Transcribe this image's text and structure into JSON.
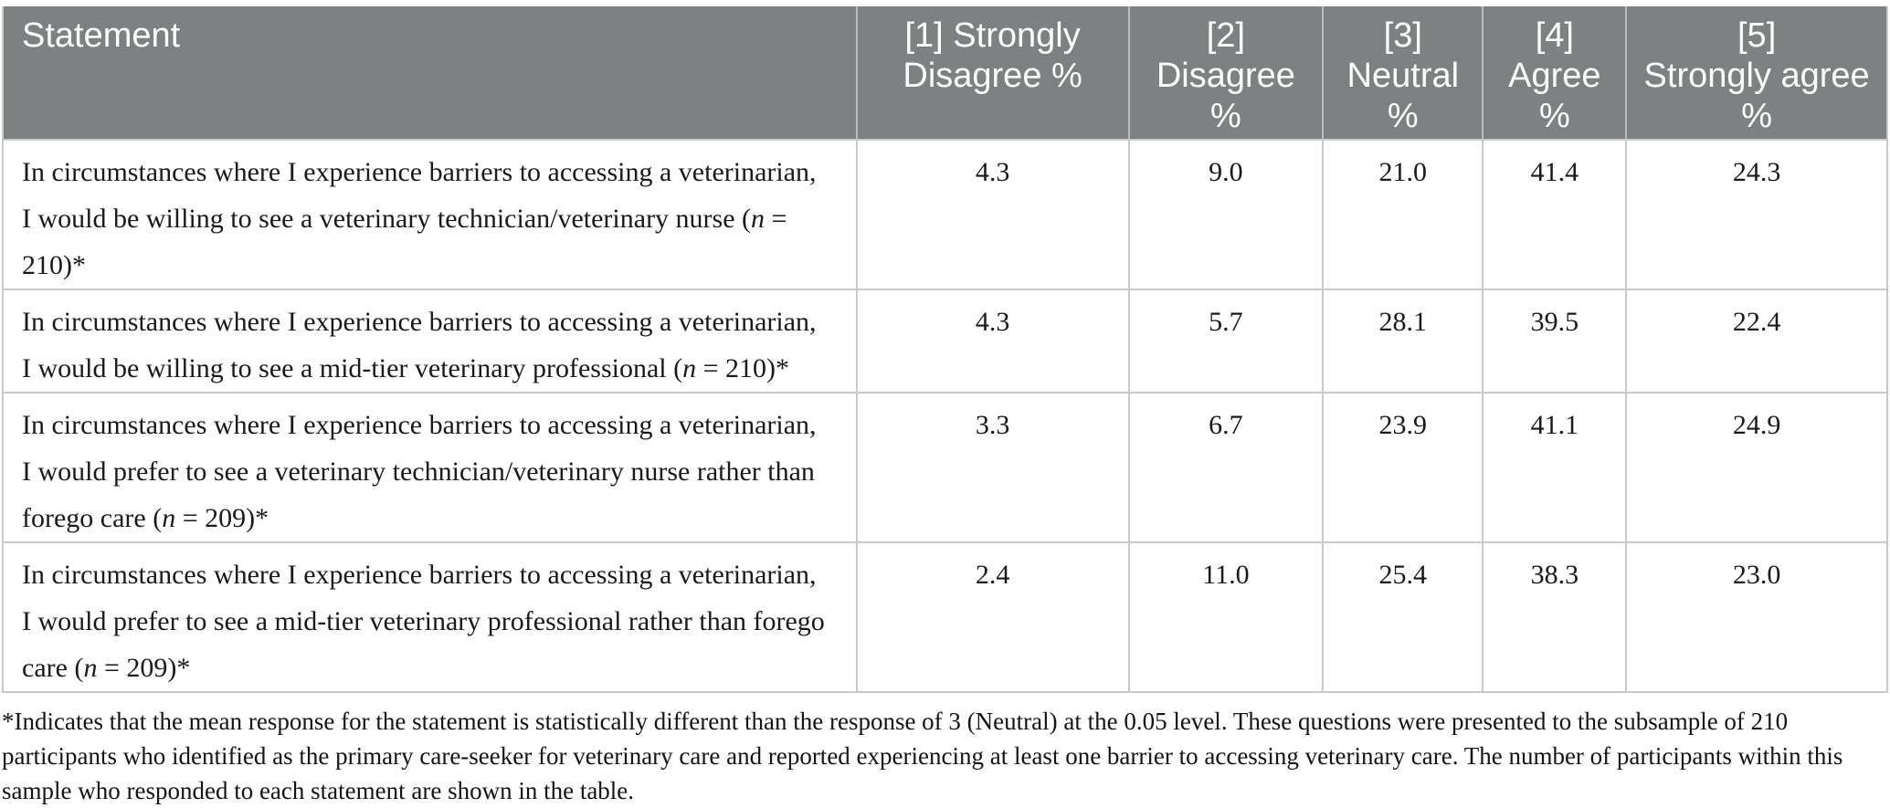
{
  "table": {
    "header": {
      "columns": [
        {
          "id": "statement",
          "align": "left",
          "lines": [
            "Statement"
          ]
        },
        {
          "id": "strongly-disagree",
          "align": "center",
          "lines": [
            "[1] Strongly",
            "Disagree %"
          ]
        },
        {
          "id": "disagree",
          "align": "center",
          "lines": [
            "[2]",
            "Disagree",
            "%"
          ]
        },
        {
          "id": "neutral",
          "align": "center",
          "lines": [
            "[3]",
            "Neutral",
            "%"
          ]
        },
        {
          "id": "agree",
          "align": "center",
          "lines": [
            "[4]",
            "Agree",
            "%"
          ]
        },
        {
          "id": "strongly-agree",
          "align": "center",
          "lines": [
            "[5]",
            "Strongly agree",
            "%"
          ]
        }
      ]
    },
    "rows": [
      {
        "statement_lines": [
          "In circumstances where I experience barriers to accessing a veterinarian,",
          "I would be willing to see a veterinary technician/veterinary nurse (n = 210)*"
        ],
        "values": [
          "4.3",
          "9.0",
          "21.0",
          "41.4",
          "24.3"
        ]
      },
      {
        "statement_lines": [
          "In circumstances where I experience barriers to accessing a veterinarian,",
          "I would be willing to see a mid-tier veterinary professional (n = 210)*"
        ],
        "values": [
          "4.3",
          "5.7",
          "28.1",
          "39.5",
          "22.4"
        ]
      },
      {
        "statement_lines": [
          "In circumstances where I experience barriers to accessing a veterinarian,",
          "I would prefer to see a veterinary technician/veterinary nurse rather than",
          "forego care (n = 209)*"
        ],
        "values": [
          "3.3",
          "6.7",
          "23.9",
          "41.1",
          "24.9"
        ]
      },
      {
        "statement_lines": [
          "In circumstances where I experience barriers to accessing a veterinarian,",
          "I would prefer to see a mid-tier veterinary professional rather than forego",
          "care (n = 209)*"
        ],
        "values": [
          "2.4",
          "11.0",
          "25.4",
          "38.3",
          "23.0"
        ]
      }
    ]
  },
  "footnote": "*Indicates that the mean response for the statement is statistically different than the response of 3 (Neutral) at the 0.05 level. These questions were presented to the subsample of 210 participants who identified as the primary care-seeker for veterinary care and reported experiencing at least one barrier to accessing veterinary care. The number of participants within this sample who responded to each statement are shown in the table.",
  "colors": {
    "header_bg": "#7e8181",
    "header_text": "#ffffff",
    "border": "#c9c9c9",
    "body_text": "#1a1a1a"
  }
}
